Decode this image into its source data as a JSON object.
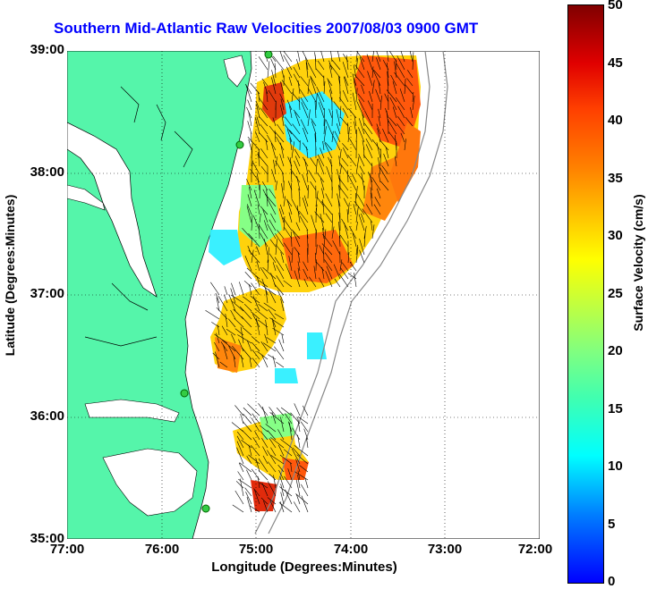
{
  "title": "Southern Mid-Atlantic Raw Velocities 2007/08/03 0900 GMT",
  "xaxis": {
    "label": "Longitude (Degrees:Minutes)",
    "ticks": [
      "77:00",
      "76:00",
      "75:00",
      "74:00",
      "73:00",
      "72:00"
    ]
  },
  "yaxis": {
    "label": "Latitude (Degrees:Minutes)",
    "ticks": [
      "39:00",
      "38:00",
      "37:00",
      "36:00",
      "35:00"
    ]
  },
  "colorbar": {
    "label": "Surface Velocity (cm/s)",
    "ticks": [
      "50",
      "45",
      "40",
      "35",
      "30",
      "25",
      "20",
      "15",
      "10",
      "5",
      "0"
    ]
  },
  "colors": {
    "title": "#0000ff",
    "land": "#55f5aa",
    "sea": "#ffffff",
    "station": "#33cc44"
  }
}
